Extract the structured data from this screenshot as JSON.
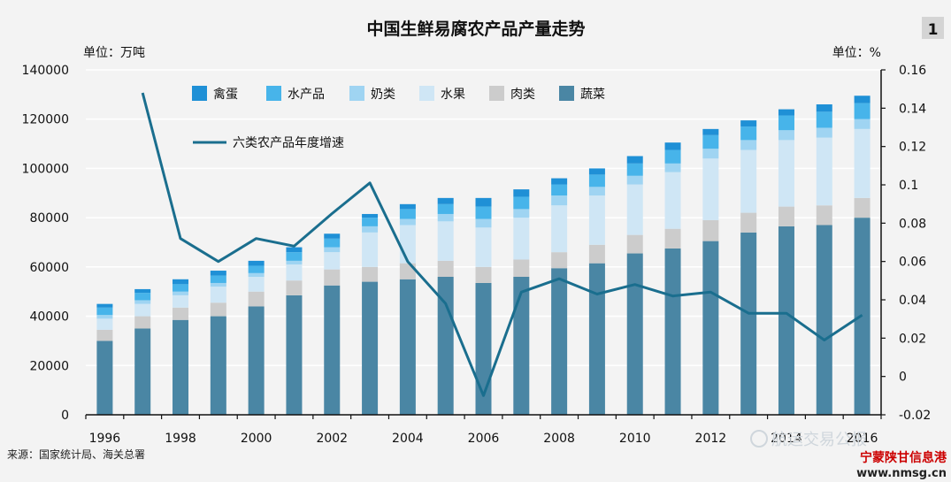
{
  "page_number": "1",
  "source": "来源：国家统计局、海关总署",
  "watermark": {
    "account": "航运交易公报",
    "site_name": "宁蒙陕甘信息港",
    "site_url": "www.nmsg.cn"
  },
  "colors": {
    "vegetables": "#4a86a4",
    "meat": "#cccccc",
    "fruit": "#cfe6f5",
    "milk": "#9fd4f2",
    "aquatic": "#47b4ea",
    "poultry_egg": "#1f90d6",
    "growth_line": "#1a6e8e",
    "bg": "#f3f3f3"
  },
  "chart_data": {
    "type": "bar",
    "stacked": true,
    "title": "中国生鲜易腐农产品产量走势",
    "ylabel": "单位：万吨",
    "y2label": "单位：%",
    "ylim": [
      0,
      140000
    ],
    "y2lim": [
      -0.02,
      0.16
    ],
    "yticks": [
      "0",
      "20000",
      "40000",
      "60000",
      "80000",
      "100000",
      "120000",
      "140000"
    ],
    "y2ticks": [
      "-0.02",
      "0",
      "0.02",
      "0.04",
      "0.06",
      "0.08",
      "0.1",
      "0.12",
      "0.14",
      "0.16"
    ],
    "xtick_labels": [
      "1996",
      "1998",
      "2000",
      "2002",
      "2004",
      "2006",
      "2008",
      "2010",
      "2012",
      "2014",
      "2016"
    ],
    "grid": true,
    "legend_position": "top-left",
    "categories": [
      "1996",
      "1997",
      "1998",
      "1999",
      "2000",
      "2001",
      "2002",
      "2003",
      "2004",
      "2005",
      "2006",
      "2007",
      "2008",
      "2009",
      "2010",
      "2011",
      "2012",
      "2013",
      "2014",
      "2015",
      "2016"
    ],
    "series": [
      {
        "name": "蔬菜",
        "key": "vegetables",
        "values": [
          30000,
          35000,
          38500,
          40000,
          44000,
          48500,
          52500,
          54000,
          55000,
          56000,
          53500,
          56000,
          59500,
          61500,
          65500,
          67500,
          70500,
          74000,
          76500,
          77000,
          80000
        ]
      },
      {
        "name": "肉类",
        "key": "meat",
        "values": [
          4500,
          5000,
          5000,
          5500,
          6000,
          6000,
          6500,
          6000,
          6500,
          6500,
          6500,
          7000,
          6500,
          7500,
          7500,
          8000,
          8500,
          8000,
          8000,
          8000,
          8000
        ]
      },
      {
        "name": "水果",
        "key": "fruit",
        "values": [
          4500,
          5000,
          5000,
          6500,
          6000,
          6500,
          7000,
          14000,
          15500,
          16000,
          16000,
          17000,
          19000,
          20000,
          20500,
          23000,
          25000,
          25500,
          27000,
          27500,
          28000
        ]
      },
      {
        "name": "奶类",
        "key": "milk",
        "values": [
          1500,
          1500,
          1500,
          1500,
          1500,
          1500,
          2000,
          2500,
          2500,
          3000,
          3500,
          3500,
          4000,
          3500,
          3500,
          3500,
          4000,
          4000,
          4000,
          4000,
          4000
        ]
      },
      {
        "name": "水产品",
        "key": "aquatic",
        "values": [
          3000,
          3000,
          3000,
          3000,
          3000,
          3500,
          3500,
          3500,
          4000,
          4000,
          5000,
          5000,
          4500,
          5000,
          5000,
          5500,
          5500,
          5500,
          6000,
          6500,
          6500
        ]
      },
      {
        "name": "禽蛋",
        "key": "poultry_egg",
        "values": [
          1500,
          1500,
          2000,
          2000,
          2000,
          2000,
          2000,
          1500,
          2000,
          2500,
          3500,
          3000,
          2500,
          2500,
          3000,
          3000,
          2500,
          2500,
          2500,
          3000,
          3000
        ]
      }
    ],
    "line_series": {
      "name": "六类农产品年度增速",
      "axis": "right",
      "x": [
        "1997",
        "1998",
        "1999",
        "2000",
        "2001",
        "2002",
        "2003",
        "2004",
        "2005",
        "2006",
        "2007",
        "2008",
        "2009",
        "2010",
        "2011",
        "2012",
        "2013",
        "2014",
        "2015",
        "2016"
      ],
      "values": [
        0.148,
        0.072,
        0.06,
        0.072,
        0.068,
        0.085,
        0.101,
        0.06,
        0.038,
        -0.01,
        0.044,
        0.051,
        0.043,
        0.048,
        0.042,
        0.044,
        0.033,
        0.033,
        0.019,
        0.032
      ]
    }
  }
}
